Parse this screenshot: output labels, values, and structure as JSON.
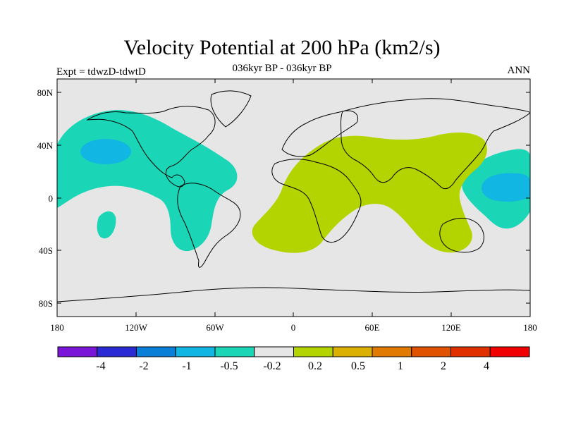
{
  "title": "Velocity Potential at 200 hPa (km2/s)",
  "subtitle": "036kyr BP - 036kyr BP",
  "left_label": "Expt = tdwzD-tdwtD",
  "right_label": "ANN",
  "y_ticks": [
    "80N",
    "40N",
    "0",
    "40S",
    "80S"
  ],
  "x_ticks": [
    "180",
    "120W",
    "60W",
    "0",
    "60E",
    "120E",
    "180"
  ],
  "colorbar": {
    "colors": [
      "#7a16d8",
      "#2b2bd6",
      "#0a7fd8",
      "#12b6e2",
      "#1ad6b6",
      "#e6e6e6",
      "#b4d400",
      "#dcb000",
      "#e07a00",
      "#e05200",
      "#e03000",
      "#f00000"
    ],
    "labels": [
      "-4",
      "-2",
      "-1",
      "-0.5",
      "-0.2",
      "0.2",
      "0.5",
      "1",
      "2",
      "4"
    ]
  },
  "regions_colors": {
    "background": "#e6e6e6",
    "neg_light": "#1ad6b6",
    "neg_dark": "#12b6e2",
    "pos_light": "#b4d400"
  }
}
